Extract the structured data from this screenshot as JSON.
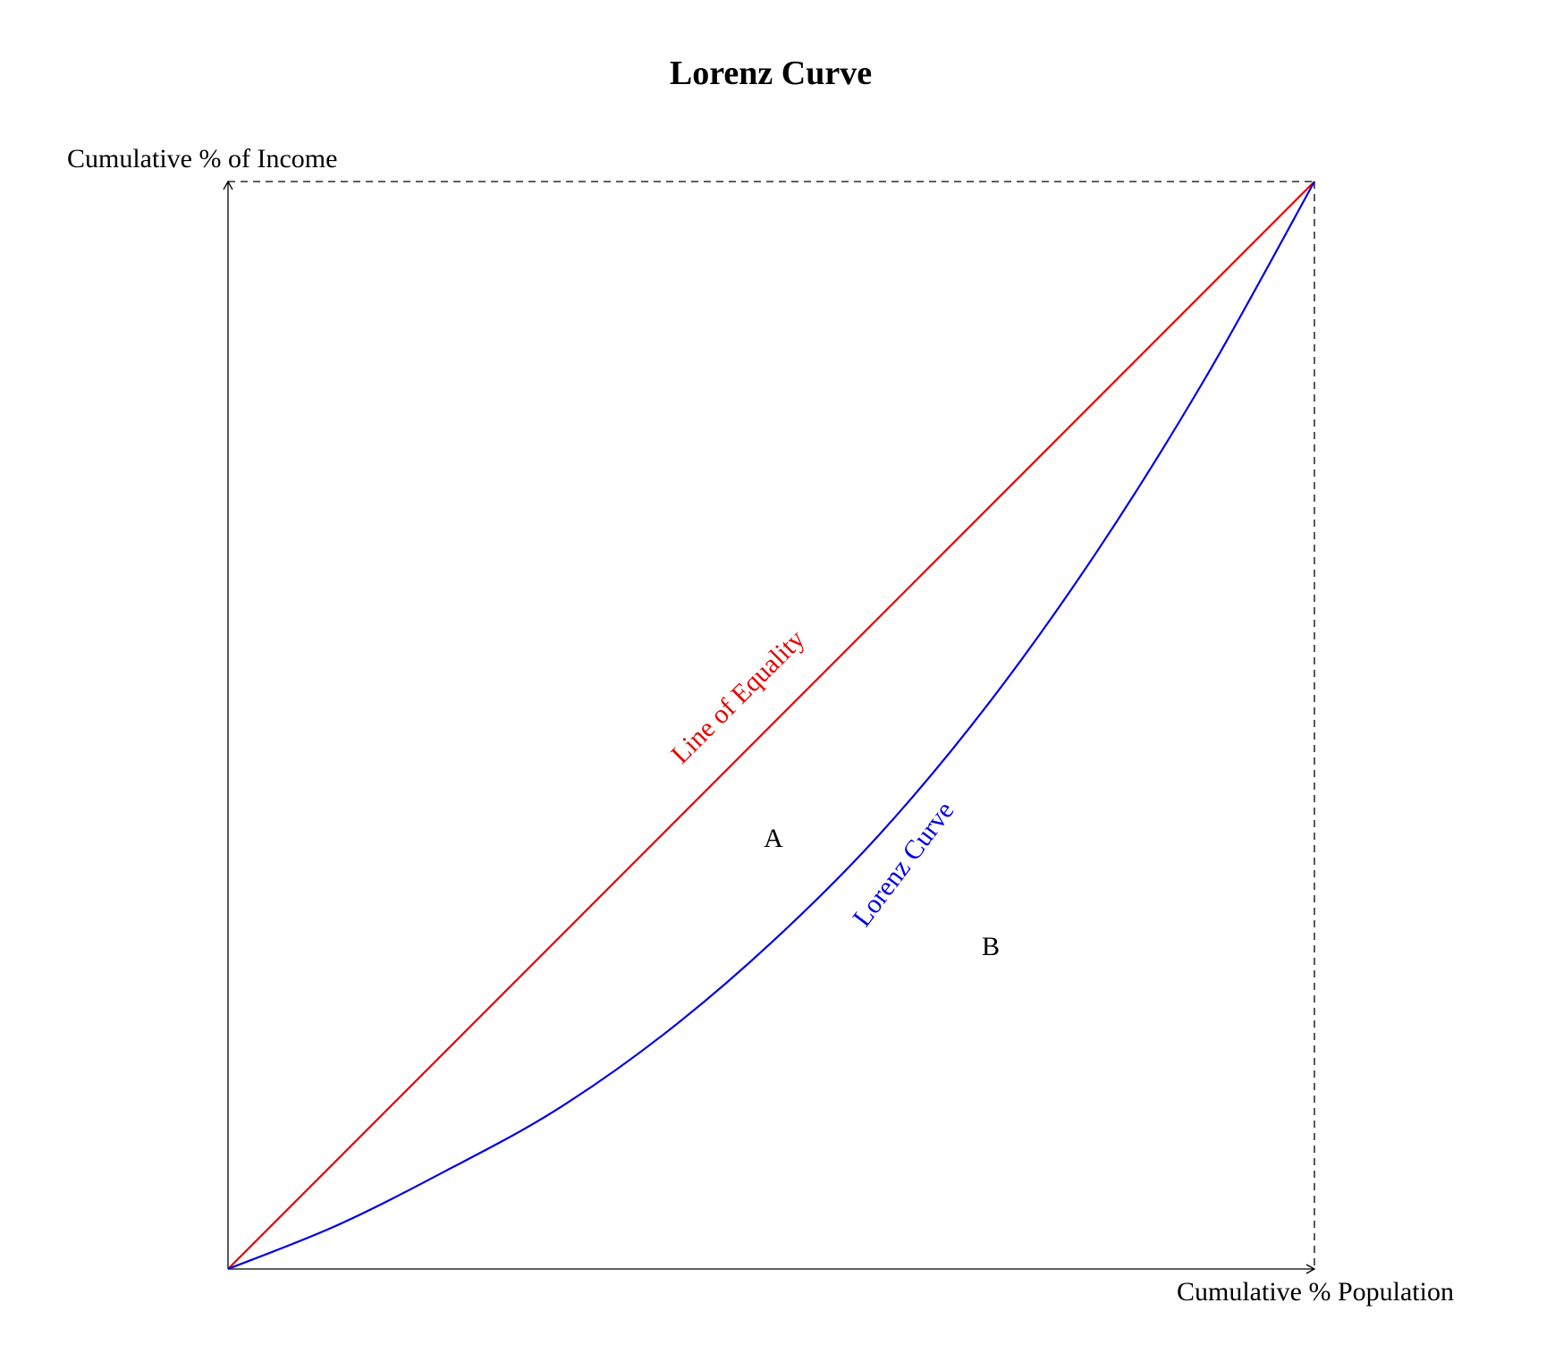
{
  "chart_data": {
    "type": "line",
    "title": "Lorenz Curve",
    "xlabel": "Cumulative % Population",
    "ylabel": "Cumulative % of Income",
    "xlim": [
      0,
      1
    ],
    "ylim": [
      0,
      1
    ],
    "grid": false,
    "legend": "none",
    "series": [
      {
        "name": "Line of Equality",
        "color": "#e60000",
        "x": [
          0,
          1
        ],
        "y": [
          0,
          1
        ]
      },
      {
        "name": "Lorenz Curve",
        "color": "#0000e6",
        "x": [
          0,
          0.1,
          0.2,
          0.3,
          0.4,
          0.5,
          0.6,
          0.7,
          0.8,
          0.9,
          1.0
        ],
        "y": [
          0,
          0.04,
          0.09,
          0.145,
          0.215,
          0.3,
          0.4,
          0.52,
          0.66,
          0.82,
          1.0
        ]
      }
    ],
    "annotations": [
      {
        "text": "A",
        "x": 0.5,
        "y": 0.4,
        "color": "#000000"
      },
      {
        "text": "B",
        "x": 0.7,
        "y": 0.3,
        "color": "#000000"
      }
    ]
  }
}
